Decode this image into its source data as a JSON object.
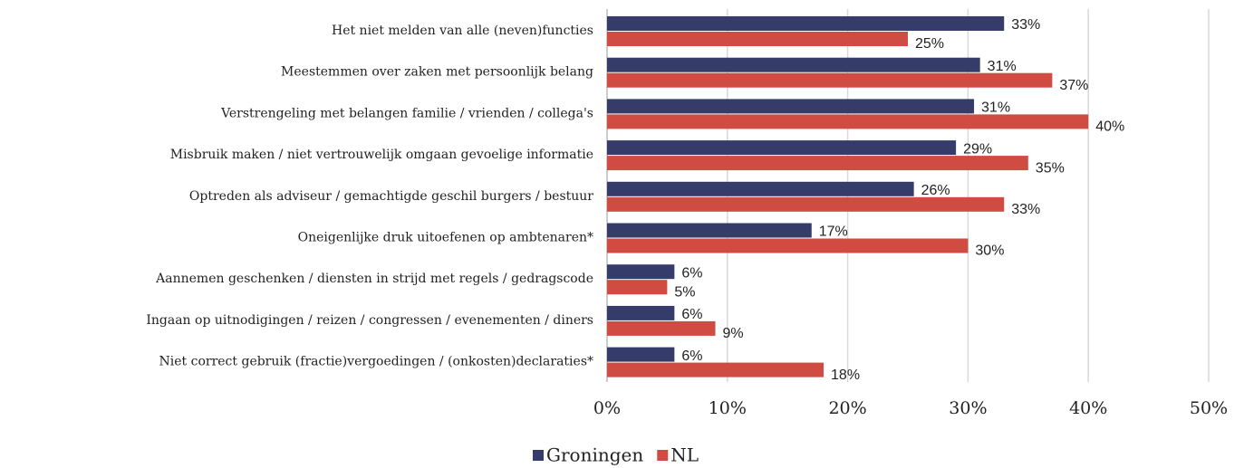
{
  "chart_data": {
    "type": "hbar",
    "categories": [
      "Het niet melden van alle (neven)functies",
      "Meestemmen over zaken met persoonlijk belang",
      "Verstrengeling met belangen familie / vrienden / collega's",
      "Misbruik maken / niet vertrouwelijk omgaan gevoelige informatie",
      "Optreden als adviseur / gemachtigde geschil burgers / bestuur",
      "Oneigenlijke druk uitoefenen op ambtenaren*",
      "Aannemen geschenken / diensten in strijd met regels / gedragscode",
      "Ingaan op uitnodigingen / reizen / congressen / evenementen / diners",
      "Niet correct gebruik (fractie)vergoedingen / (onkosten)declaraties*"
    ],
    "series": [
      {
        "name": "Groningen",
        "color": "#363c6a",
        "values": [
          33,
          31,
          30.5,
          29,
          25.5,
          17,
          5.6,
          5.6,
          5.6
        ],
        "value_labels": [
          "33%",
          "31%",
          "31%",
          "29%",
          "26%",
          "17%",
          "6%",
          "6%",
          "6%"
        ]
      },
      {
        "name": "NL",
        "color": "#d04b42",
        "values": [
          25,
          37,
          40,
          35,
          33,
          30,
          5,
          9,
          18
        ],
        "value_labels": [
          "25%",
          "37%",
          "40%",
          "35%",
          "33%",
          "30%",
          "5%",
          "9%",
          "18%"
        ]
      }
    ],
    "xlim": [
      0,
      50
    ],
    "xticks": [
      {
        "value": 0,
        "label": "0%"
      },
      {
        "value": 10,
        "label": "10%"
      },
      {
        "value": 20,
        "label": "20%"
      },
      {
        "value": 30,
        "label": "30%"
      },
      {
        "value": 40,
        "label": "40%"
      },
      {
        "value": 50,
        "label": "50%"
      }
    ],
    "grid": true,
    "legend": "bottom"
  }
}
